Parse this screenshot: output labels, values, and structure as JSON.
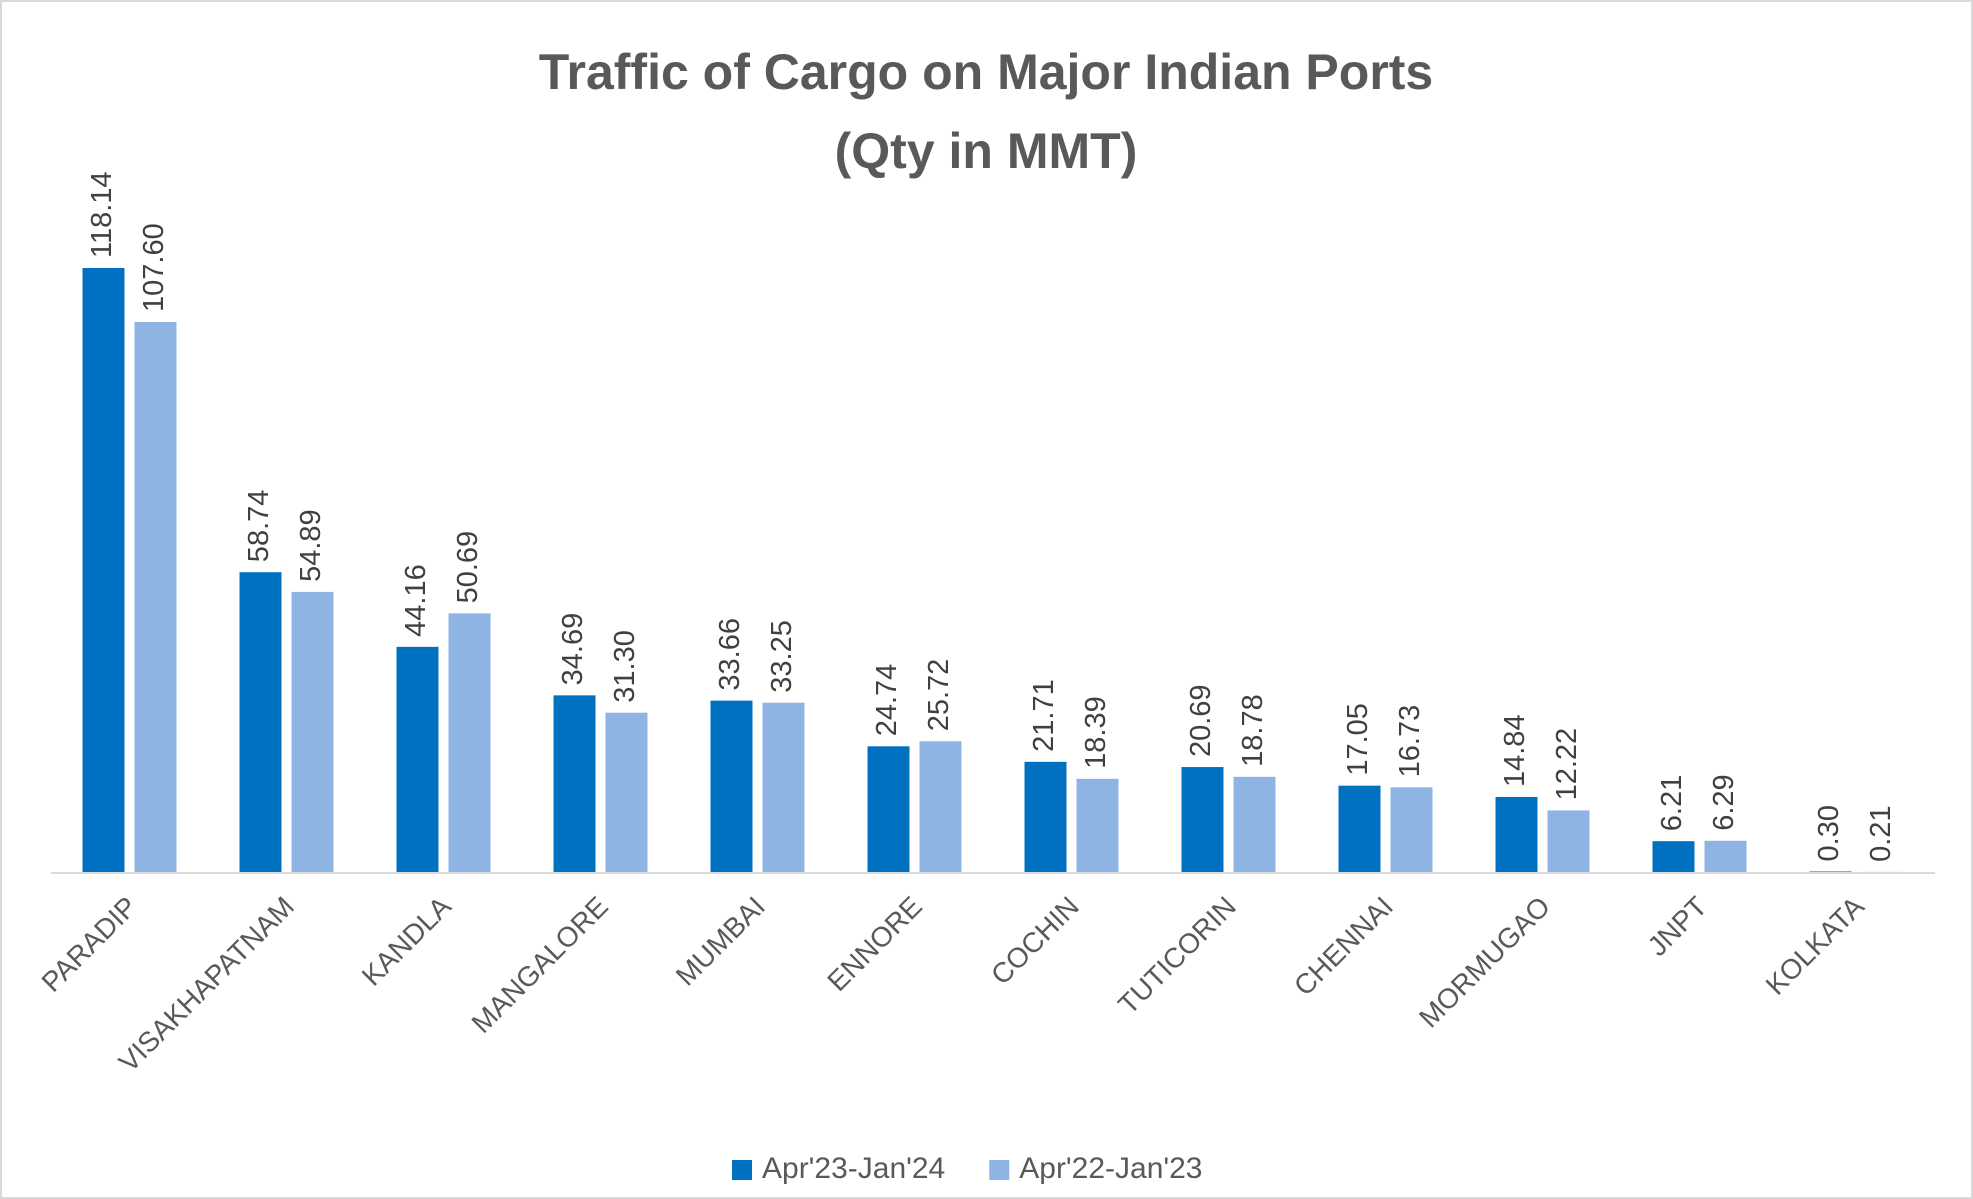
{
  "chart_data": {
    "type": "bar",
    "title": [
      "Traffic of Cargo on Major Indian Ports",
      "(Qty in MMT)"
    ],
    "categories": [
      "PARADIP",
      "VISAKHAPATNAM",
      "KANDLA",
      "MANGALORE",
      "MUMBAI",
      "ENNORE",
      "COCHIN",
      "TUTICORIN",
      "CHENNAI",
      "MORMUGAO",
      "JNPT",
      "KOLKATA"
    ],
    "series": [
      {
        "name": "Apr'23-Jan'24",
        "color": "#0070c0",
        "values": [
          118.14,
          58.74,
          44.16,
          34.69,
          33.66,
          24.74,
          21.71,
          20.69,
          17.05,
          14.84,
          6.21,
          0.3
        ],
        "value_labels": [
          "118.14",
          "58.74",
          "44.16",
          "34.69",
          "33.66",
          "24.74",
          "21.71",
          "20.69",
          "17.05",
          "14.84",
          "6.21",
          "0.30"
        ]
      },
      {
        "name": "Apr'22-Jan'23",
        "color": "#8eb4e3",
        "values": [
          107.6,
          54.89,
          50.69,
          31.3,
          33.25,
          25.72,
          18.39,
          18.78,
          16.73,
          12.22,
          6.29,
          0.21
        ],
        "value_labels": [
          "107.60",
          "54.89",
          "50.69",
          "31.30",
          "33.25",
          "25.72",
          "18.39",
          "18.78",
          "16.73",
          "12.22",
          "6.29",
          "0.21"
        ]
      }
    ],
    "legend": "bottom"
  }
}
